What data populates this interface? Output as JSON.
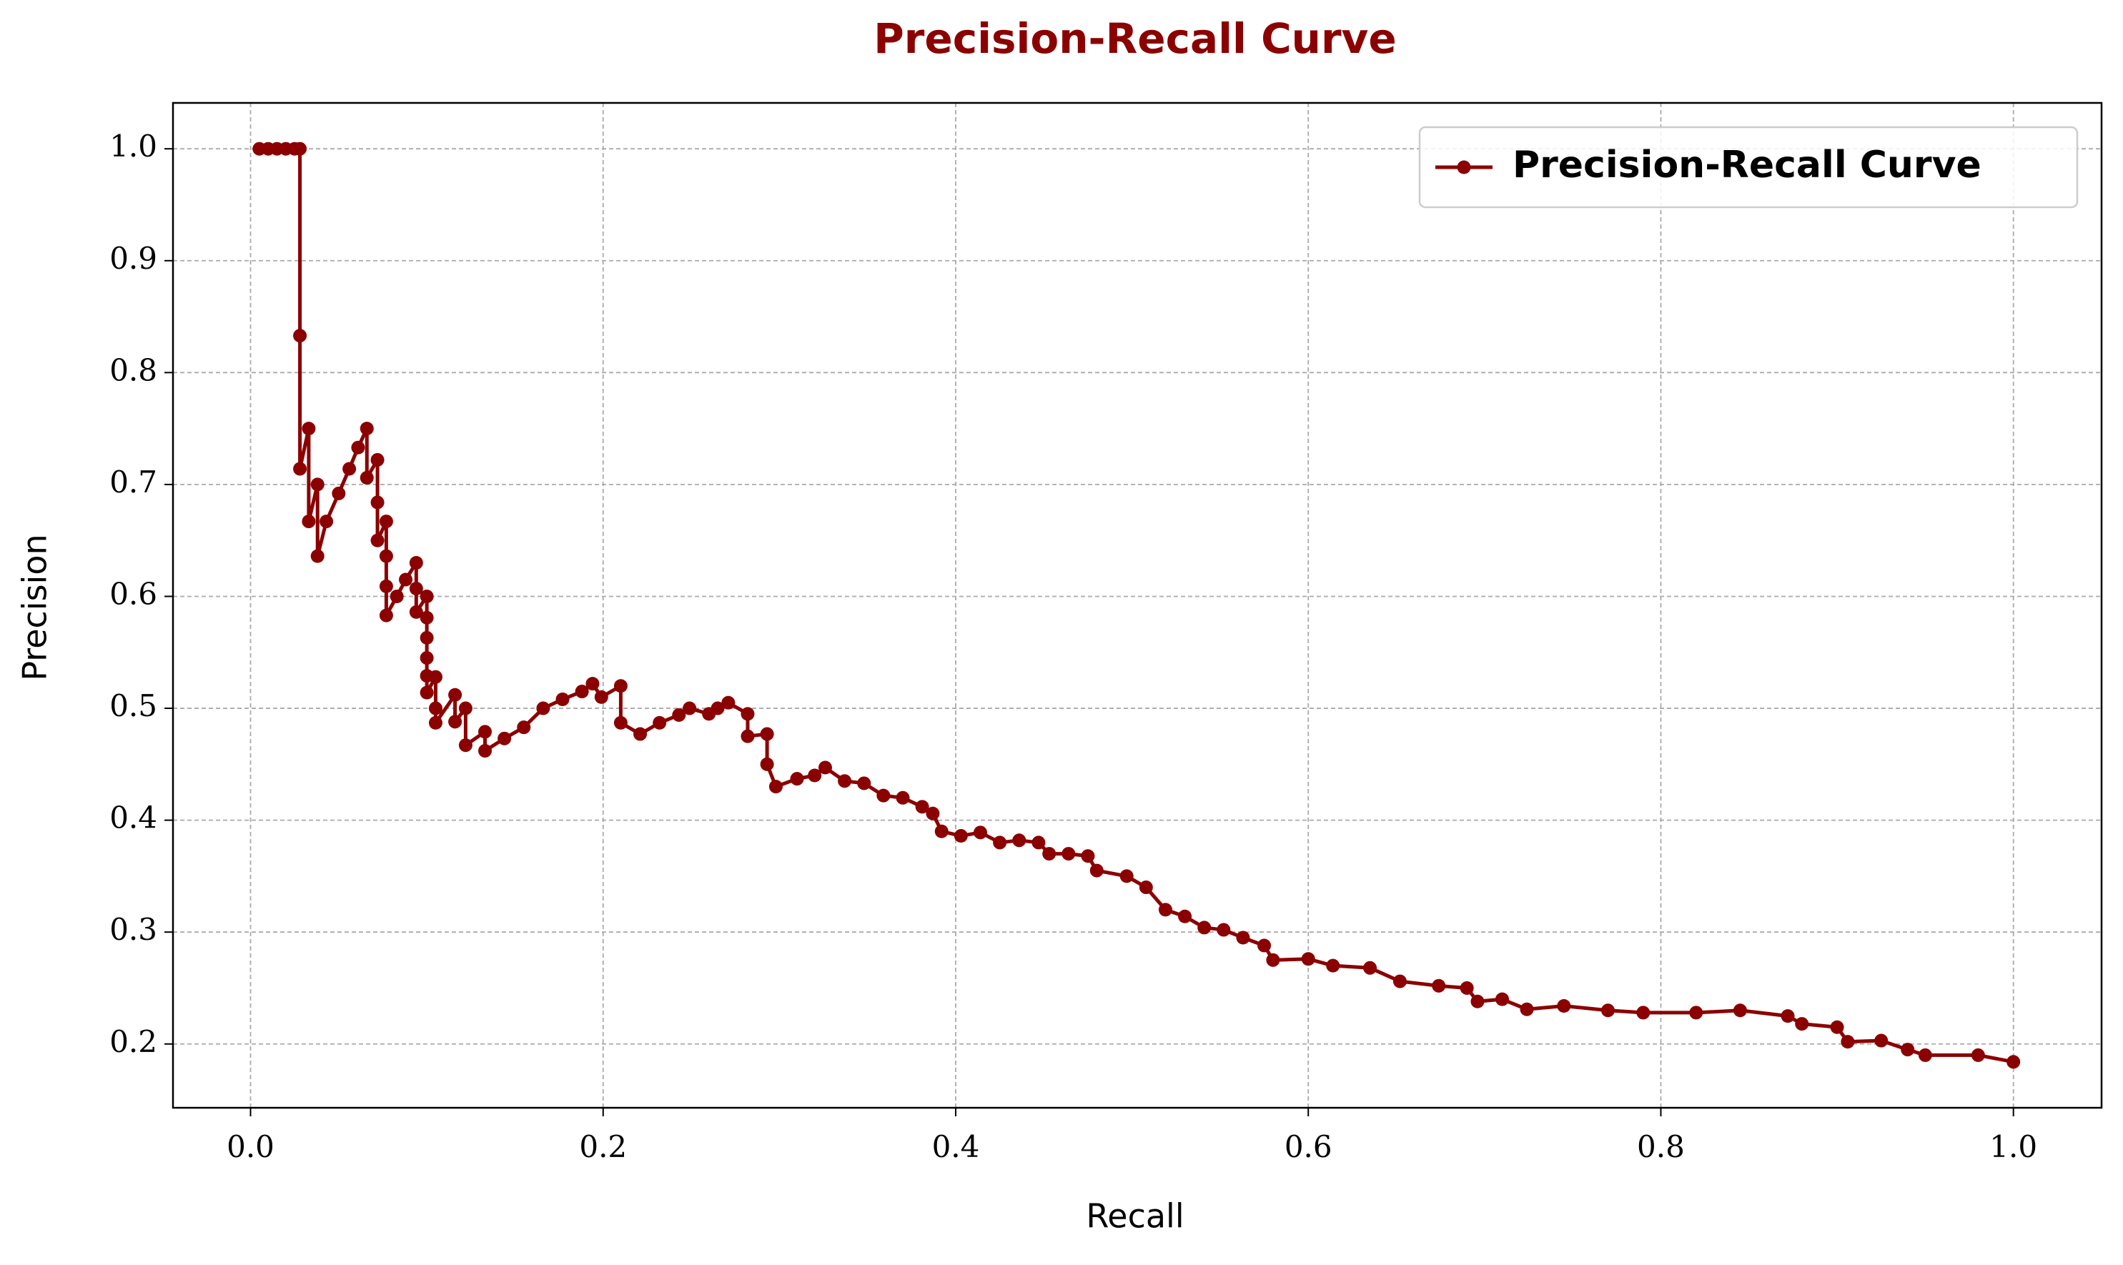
{
  "chart_data": {
    "type": "line",
    "title": "Precision-Recall Curve",
    "x_label": "Recall",
    "y_label": "Precision",
    "x": [
      0.005,
      0.01,
      0.015,
      0.02,
      0.025,
      0.028,
      0.028,
      0.028,
      0.033,
      0.033,
      0.038,
      0.038,
      0.043,
      0.05,
      0.056,
      0.061,
      0.066,
      0.066,
      0.072,
      0.072,
      0.072,
      0.077,
      0.077,
      0.077,
      0.077,
      0.083,
      0.088,
      0.094,
      0.094,
      0.094,
      0.1,
      0.1,
      0.1,
      0.1,
      0.1,
      0.1,
      0.105,
      0.105,
      0.105,
      0.116,
      0.116,
      0.122,
      0.122,
      0.133,
      0.133,
      0.144,
      0.155,
      0.166,
      0.177,
      0.188,
      0.194,
      0.199,
      0.21,
      0.21,
      0.221,
      0.232,
      0.243,
      0.249,
      0.26,
      0.265,
      0.271,
      0.282,
      0.282,
      0.293,
      0.293,
      0.298,
      0.31,
      0.32,
      0.326,
      0.337,
      0.348,
      0.359,
      0.37,
      0.381,
      0.387,
      0.392,
      0.403,
      0.414,
      0.425,
      0.436,
      0.447,
      0.453,
      0.464,
      0.475,
      0.48,
      0.497,
      0.508,
      0.519,
      0.53,
      0.541,
      0.552,
      0.563,
      0.575,
      0.58,
      0.6,
      0.614,
      0.635,
      0.652,
      0.674,
      0.69,
      0.696,
      0.71,
      0.724,
      0.745,
      0.77,
      0.79,
      0.82,
      0.845,
      0.872,
      0.88,
      0.9,
      0.906,
      0.925,
      0.94,
      0.95,
      0.98,
      1.0
    ],
    "series": [
      {
        "name": "Precision-Recall Curve",
        "color": "#8b0000",
        "values": [
          1.0,
          1.0,
          1.0,
          1.0,
          1.0,
          1.0,
          0.833,
          0.714,
          0.75,
          0.667,
          0.7,
          0.636,
          0.667,
          0.692,
          0.714,
          0.733,
          0.75,
          0.706,
          0.722,
          0.684,
          0.65,
          0.667,
          0.636,
          0.609,
          0.583,
          0.6,
          0.615,
          0.63,
          0.607,
          0.586,
          0.6,
          0.581,
          0.563,
          0.545,
          0.529,
          0.514,
          0.528,
          0.5,
          0.487,
          0.512,
          0.488,
          0.5,
          0.467,
          0.479,
          0.462,
          0.473,
          0.483,
          0.5,
          0.508,
          0.515,
          0.522,
          0.51,
          0.52,
          0.487,
          0.477,
          0.487,
          0.494,
          0.5,
          0.495,
          0.5,
          0.505,
          0.495,
          0.475,
          0.477,
          0.45,
          0.43,
          0.437,
          0.44,
          0.447,
          0.435,
          0.433,
          0.422,
          0.42,
          0.412,
          0.406,
          0.39,
          0.386,
          0.389,
          0.38,
          0.382,
          0.38,
          0.37,
          0.37,
          0.368,
          0.355,
          0.35,
          0.34,
          0.32,
          0.314,
          0.304,
          0.302,
          0.295,
          0.288,
          0.275,
          0.276,
          0.27,
          0.268,
          0.256,
          0.252,
          0.25,
          0.238,
          0.24,
          0.231,
          0.234,
          0.23,
          0.228,
          0.228,
          0.23,
          0.225,
          0.218,
          0.215,
          0.202,
          0.203,
          0.195,
          0.19,
          0.19,
          0.184
        ]
      }
    ],
    "xlim": [
      -0.044,
      1.05
    ],
    "ylim": [
      0.143,
      1.041
    ],
    "xticks": [
      {
        "value": 0,
        "label": "0.0"
      },
      0.2,
      0.4,
      0.6,
      0.8,
      {
        "value": 1,
        "label": "1.0"
      }
    ],
    "yticks": [
      0.2,
      0.3,
      0.4,
      0.5,
      0.6,
      0.7,
      0.8,
      0.9,
      {
        "value": 1,
        "label": "1.0"
      }
    ],
    "grid": true,
    "legend": "upper right"
  }
}
